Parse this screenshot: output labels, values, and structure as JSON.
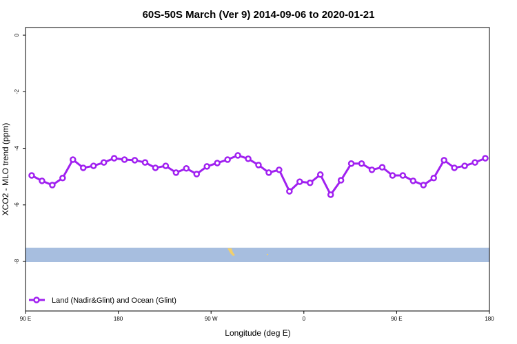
{
  "chart_data": {
    "type": "line",
    "title": "60S-50S March (Ver 9)   2014-09-06 to 2020-01-21",
    "xlabel": "Longitude (deg E)",
    "ylabel": "XCO2 - MLO trend (ppm)",
    "x": [
      96,
      106,
      116,
      126,
      136,
      146,
      156,
      166,
      176,
      186,
      196,
      206,
      216,
      226,
      236,
      246,
      256,
      266,
      276,
      286,
      296,
      306,
      316,
      326,
      336,
      346,
      356,
      366,
      376,
      386,
      396,
      406,
      416,
      426,
      436,
      446,
      456,
      466,
      476,
      486,
      496,
      506,
      516,
      526,
      536
    ],
    "series": [
      {
        "name": "Land (Nadir&Glint) and Ocean (Glint)",
        "color": "#a020f0",
        "values": [
          -4.96,
          -5.15,
          -5.3,
          -5.05,
          -4.4,
          -4.69,
          -4.62,
          -4.5,
          -4.35,
          -4.4,
          -4.42,
          -4.5,
          -4.69,
          -4.62,
          -4.86,
          -4.71,
          -4.91,
          -4.64,
          -4.52,
          -4.4,
          -4.25,
          -4.37,
          -4.59,
          -4.86,
          -4.76,
          -5.52,
          -5.18,
          -5.22,
          -4.93,
          -5.64,
          -5.13,
          -4.54,
          -4.54,
          -4.76,
          -4.67,
          -4.96,
          -4.96,
          -5.15,
          -5.3,
          -5.05,
          -4.42,
          -4.69,
          -4.62,
          -4.5,
          -4.35
        ]
      }
    ],
    "xlim": [
      90,
      540
    ],
    "xticks": [
      {
        "value": 90,
        "label": "90 E"
      },
      180,
      {
        "value": 270,
        "label": "90 W"
      },
      {
        "value": 360,
        "label": "0"
      },
      {
        "value": 450,
        "label": "90 E"
      },
      {
        "value": 540,
        "label": "180"
      }
    ],
    "ylim": [
      -9.75,
      0.27
    ],
    "yticks": [
      0,
      -2,
      -4,
      -6,
      -8
    ],
    "legend": "bottom-left"
  }
}
